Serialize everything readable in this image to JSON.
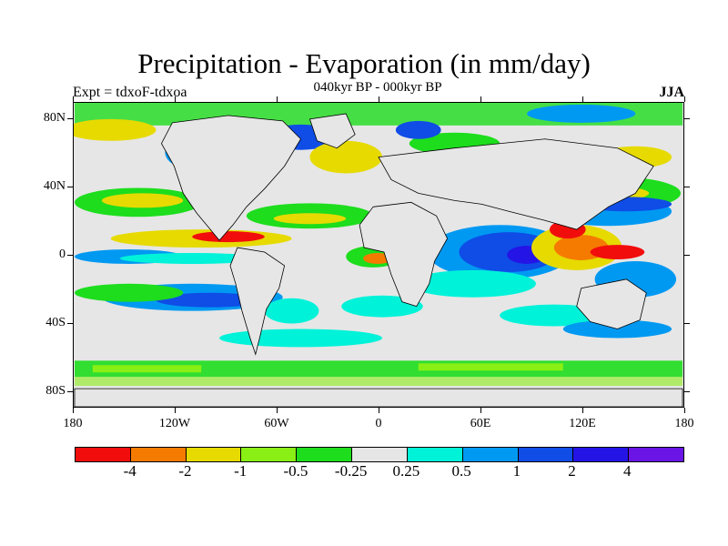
{
  "header": {
    "title": "Precipitation - Evaporation (in mm/day)",
    "subtitle": "040kyr BP - 000kyr BP",
    "left_label": "Expt = tdxoF-tdxoa",
    "right_label": "JJA"
  },
  "axes": {
    "y_labels": [
      "80N",
      "40N",
      "0",
      "40S",
      "80S"
    ],
    "x_labels": [
      "180",
      "120W",
      "60W",
      "0",
      "60E",
      "120E",
      "180"
    ]
  },
  "colorbar": {
    "colors": [
      "#f20d0d",
      "#f57b00",
      "#e6da00",
      "#8aef14",
      "#1ddd1d",
      "#e6e6e6",
      "#00f2d9",
      "#0099f2",
      "#0f4de6",
      "#2414e6",
      "#6a14e6"
    ],
    "labels": [
      "-4",
      "-2",
      "-1",
      "-0.5",
      "-0.25",
      "0.25",
      "0.5",
      "1",
      "2",
      "4"
    ]
  },
  "map_style": {
    "background": "#e6e6e6",
    "coastline_color": "#000000"
  }
}
